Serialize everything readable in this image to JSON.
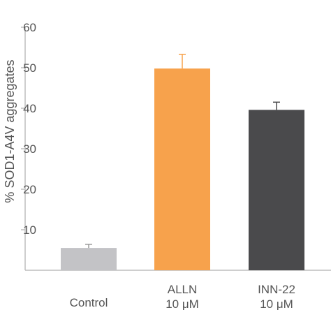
{
  "chart_data": {
    "type": "bar",
    "categories": [
      [
        "Control"
      ],
      [
        "ALLN",
        "10 μM"
      ],
      [
        "INN-22",
        "10 μM"
      ]
    ],
    "values": [
      5.5,
      49.8,
      39.6
    ],
    "errors": [
      0.9,
      3.5,
      1.9
    ],
    "colors": [
      "#c3c3c6",
      "#f7a24c",
      "#4a4a4c"
    ],
    "ylabel": "% SOD1-A4V aggregates",
    "xlabel": "",
    "ylim": [
      0,
      60
    ],
    "yticks": [
      10,
      20,
      30,
      40,
      50,
      60
    ],
    "grid": false,
    "legend": "none"
  }
}
